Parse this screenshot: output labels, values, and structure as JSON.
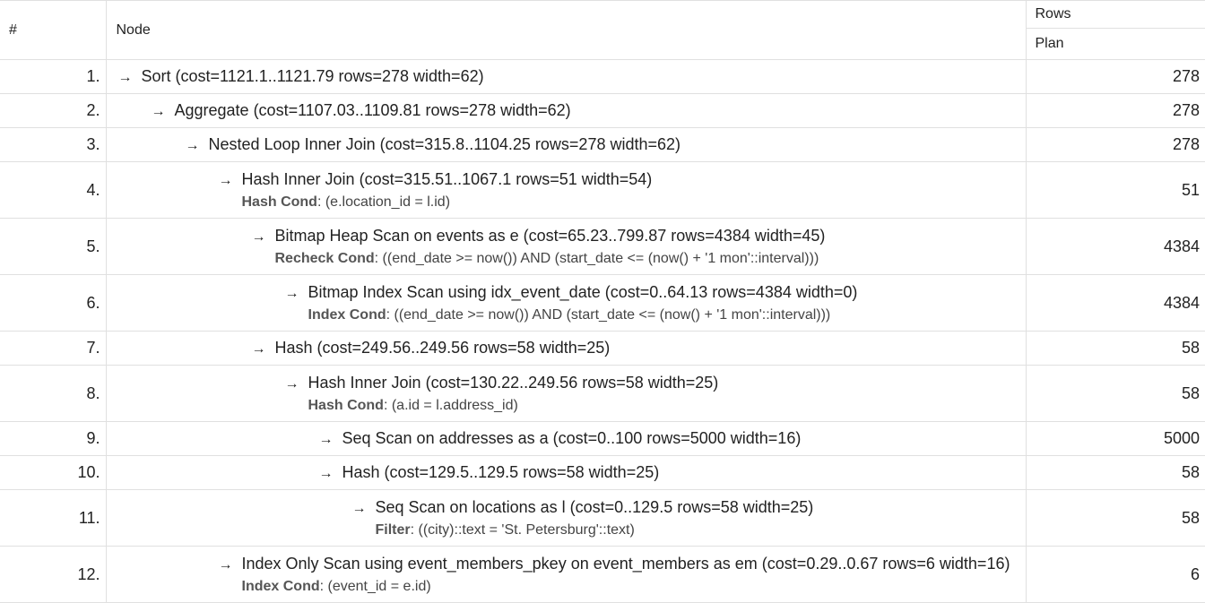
{
  "header": {
    "num": "#",
    "node": "Node",
    "rows": "Rows",
    "plan": "Plan"
  },
  "arrow": "→",
  "rows": [
    {
      "num": "1.",
      "node": "Sort (cost=1121.1..1121.79 rows=278 width=62)",
      "cond_label": "",
      "cond_value": "",
      "plan": "278"
    },
    {
      "num": "2.",
      "node": "Aggregate (cost=1107.03..1109.81 rows=278 width=62)",
      "cond_label": "",
      "cond_value": "",
      "plan": "278"
    },
    {
      "num": "3.",
      "node": "Nested Loop Inner Join (cost=315.8..1104.25 rows=278 width=62)",
      "cond_label": "",
      "cond_value": "",
      "plan": "278"
    },
    {
      "num": "4.",
      "node": "Hash Inner Join (cost=315.51..1067.1 rows=51 width=54)",
      "cond_label": "Hash Cond",
      "cond_value": "(e.location_id = l.id)",
      "plan": "51"
    },
    {
      "num": "5.",
      "node": "Bitmap Heap Scan on events as e (cost=65.23..799.87 rows=4384 width=45)",
      "cond_label": "Recheck Cond",
      "cond_value": "((end_date >= now()) AND (start_date <= (now() + '1 mon'::interval)))",
      "plan": "4384"
    },
    {
      "num": "6.",
      "node": "Bitmap Index Scan using idx_event_date (cost=0..64.13 rows=4384 width=0)",
      "cond_label": "Index Cond",
      "cond_value": "((end_date >= now()) AND (start_date <= (now() + '1 mon'::interval)))",
      "plan": "4384"
    },
    {
      "num": "7.",
      "node": "Hash (cost=249.56..249.56 rows=58 width=25)",
      "cond_label": "",
      "cond_value": "",
      "plan": "58"
    },
    {
      "num": "8.",
      "node": "Hash Inner Join (cost=130.22..249.56 rows=58 width=25)",
      "cond_label": "Hash Cond",
      "cond_value": "(a.id = l.address_id)",
      "plan": "58"
    },
    {
      "num": "9.",
      "node": "Seq Scan on addresses as a (cost=0..100 rows=5000 width=16)",
      "cond_label": "",
      "cond_value": "",
      "plan": "5000"
    },
    {
      "num": "10.",
      "node": "Hash (cost=129.5..129.5 rows=58 width=25)",
      "cond_label": "",
      "cond_value": "",
      "plan": "58"
    },
    {
      "num": "11.",
      "node": "Seq Scan on locations as l (cost=0..129.5 rows=58 width=25)",
      "cond_label": "Filter",
      "cond_value": "((city)::text = 'St. Petersburg'::text)",
      "plan": "58"
    },
    {
      "num": "12.",
      "node": "Index Only Scan using event_members_pkey on event_members as em (cost=0.29..0.67 rows=6 width=16)",
      "cond_label": "Index Cond",
      "cond_value": "(event_id = e.id)",
      "plan": "6"
    }
  ]
}
